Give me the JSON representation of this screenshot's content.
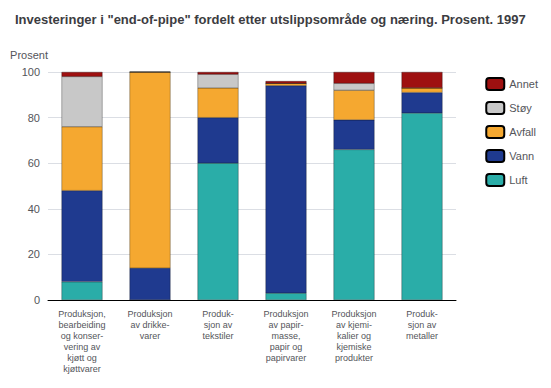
{
  "chart_data": {
    "type": "bar",
    "stacked": true,
    "title": "Investeringer i \"end-of-pipe\" fordelt etter utslippsområde og næring. Prosent. 1997",
    "ylabel": "Prosent",
    "categories": [
      "Produksjon,\nbearbeiding\nog konser-\nvering av\nkjøtt og\nkjøttvarer",
      "Produksjon\nav drikke-\nvarer",
      "Produk-\nsjon av\ntekstiler",
      "Produksjon\nav papir-\nmasse,\npapir og\npapirvarer",
      "Produksjon\nav kjemi-\nkalier og\nkjemiske\nprodukter",
      "Produk-\nsjon av\nmetaller"
    ],
    "series": [
      {
        "name": "Luft",
        "color": "#2aada8",
        "values": [
          8,
          0,
          60,
          3,
          66,
          82
        ]
      },
      {
        "name": "Vann",
        "color": "#1f3a8f",
        "values": [
          40,
          14,
          20,
          91,
          13,
          9
        ]
      },
      {
        "name": "Avfall",
        "color": "#f5a830",
        "values": [
          28,
          86,
          13,
          1,
          13,
          2
        ]
      },
      {
        "name": "Støy",
        "color": "#c8c8c8",
        "values": [
          22,
          0,
          6,
          0,
          3,
          0
        ]
      },
      {
        "name": "Annet",
        "color": "#9e1010",
        "values": [
          2,
          0,
          1,
          1,
          5,
          7
        ]
      }
    ],
    "ylim": [
      0,
      100
    ],
    "yticks": [
      0,
      20,
      40,
      60,
      80,
      100
    ],
    "grid": true,
    "legend": "right"
  }
}
